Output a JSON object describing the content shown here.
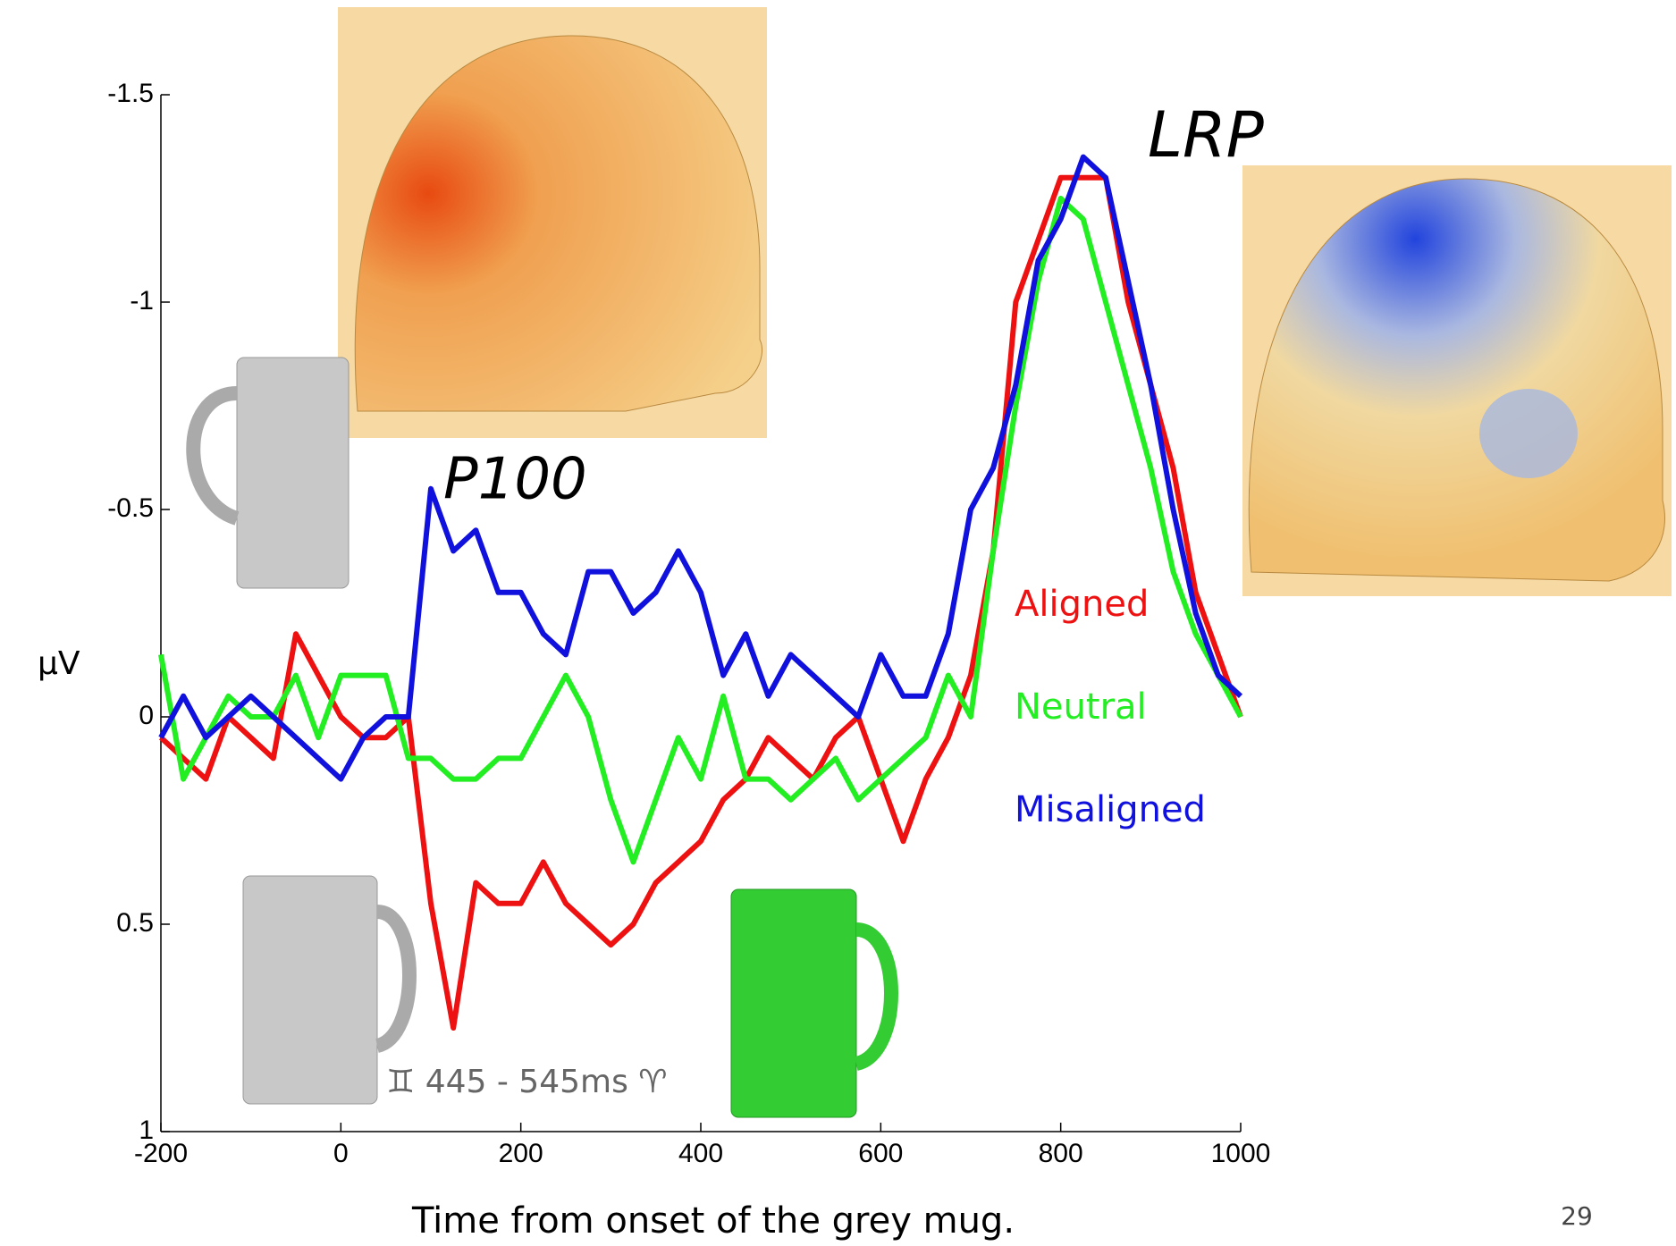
{
  "chart_data": {
    "type": "line",
    "y_label": "µV",
    "x_label": "Time from onset of the grey mug.",
    "annotations": {
      "p100": "P100",
      "lrp": "LRP",
      "window": "♊ 445 - 545ms ♈"
    },
    "page_number": "29",
    "x": [
      -200,
      -175,
      -150,
      -125,
      -100,
      -75,
      -50,
      -25,
      0,
      25,
      50,
      75,
      100,
      125,
      150,
      175,
      200,
      225,
      250,
      275,
      300,
      325,
      350,
      375,
      400,
      425,
      450,
      475,
      500,
      525,
      550,
      575,
      600,
      625,
      650,
      675,
      700,
      725,
      750,
      775,
      800,
      825,
      850,
      875,
      900,
      925,
      950,
      975,
      1000
    ],
    "series": [
      {
        "name": "Aligned",
        "color": "#ee1111",
        "values": [
          0.05,
          0.1,
          0.15,
          0.0,
          0.05,
          0.1,
          -0.2,
          -0.1,
          0.0,
          0.05,
          0.05,
          0.0,
          0.45,
          0.75,
          0.4,
          0.45,
          0.45,
          0.35,
          0.45,
          0.5,
          0.55,
          0.5,
          0.4,
          0.35,
          0.3,
          0.2,
          0.15,
          0.05,
          0.1,
          0.15,
          0.05,
          0.0,
          0.15,
          0.3,
          0.15,
          0.05,
          -0.1,
          -0.4,
          -1.0,
          -1.15,
          -1.3,
          -1.3,
          -1.3,
          -1.0,
          -0.8,
          -0.6,
          -0.3,
          -0.15,
          0.0
        ]
      },
      {
        "name": "Neutral",
        "color": "#22ee22",
        "values": [
          -0.15,
          0.15,
          0.05,
          -0.05,
          0.0,
          0.0,
          -0.1,
          0.05,
          -0.1,
          -0.1,
          -0.1,
          0.1,
          0.1,
          0.15,
          0.15,
          0.1,
          0.1,
          0.0,
          -0.1,
          0.0,
          0.2,
          0.35,
          0.2,
          0.05,
          0.15,
          -0.05,
          0.15,
          0.15,
          0.2,
          0.15,
          0.1,
          0.2,
          0.15,
          0.1,
          0.05,
          -0.1,
          0.0,
          -0.4,
          -0.75,
          -1.05,
          -1.25,
          -1.2,
          -1.0,
          -0.8,
          -0.6,
          -0.35,
          -0.2,
          -0.1,
          0.0
        ]
      },
      {
        "name": "Misaligned",
        "color": "#1111dd",
        "values": [
          0.05,
          -0.05,
          0.05,
          0.0,
          -0.05,
          0.0,
          0.05,
          0.1,
          0.15,
          0.05,
          0.0,
          0.0,
          -0.55,
          -0.4,
          -0.45,
          -0.3,
          -0.3,
          -0.2,
          -0.15,
          -0.35,
          -0.35,
          -0.25,
          -0.3,
          -0.4,
          -0.3,
          -0.1,
          -0.2,
          -0.05,
          -0.15,
          -0.1,
          -0.05,
          0.0,
          -0.15,
          -0.05,
          -0.05,
          -0.2,
          -0.5,
          -0.6,
          -0.8,
          -1.1,
          -1.2,
          -1.35,
          -1.3,
          -1.05,
          -0.8,
          -0.5,
          -0.25,
          -0.1,
          -0.05
        ]
      }
    ],
    "xlim": [
      -200,
      1000
    ],
    "xticks": [
      -200,
      0,
      200,
      400,
      600,
      800,
      1000
    ],
    "ylim": [
      -1.5,
      1
    ],
    "yticks": [
      -1.5,
      -1,
      -0.5,
      0,
      0.5,
      1
    ],
    "y_inverted": true
  }
}
